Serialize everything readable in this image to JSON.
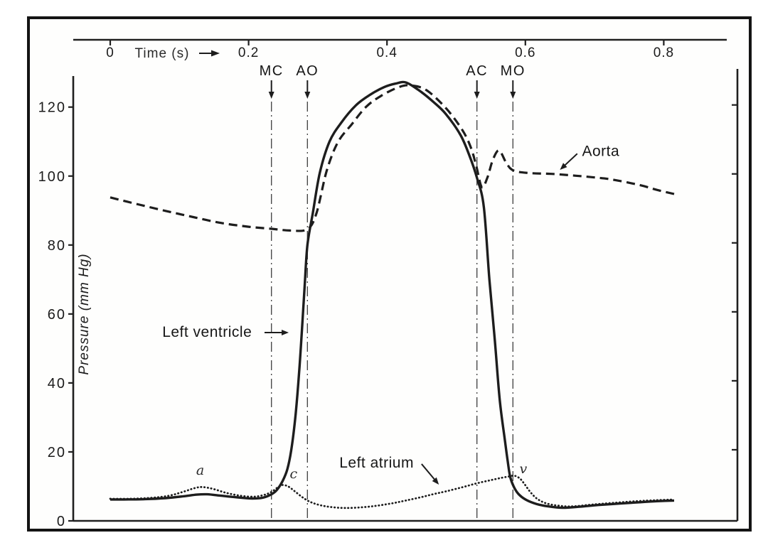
{
  "figure": {
    "colors": {
      "ink": "#1d1d1d",
      "background": "#ffffff",
      "marker_line": "#3d3d3d"
    }
  },
  "chart_data": {
    "type": "line",
    "title": "",
    "xlabel": "Time (s)",
    "ylabel": "Pressure (mm Hg)",
    "xlim": [
      0,
      0.9
    ],
    "ylim": [
      0,
      130
    ],
    "grid": false,
    "legend_position": "none",
    "x_ticks": [
      {
        "label": "0",
        "t": 0.0
      },
      {
        "label": "0.2",
        "t": 0.2
      },
      {
        "label": "0.4",
        "t": 0.4
      },
      {
        "label": "0.6",
        "t": 0.6
      },
      {
        "label": "0.8",
        "t": 0.8
      }
    ],
    "y_ticks": [
      0,
      20,
      40,
      60,
      80,
      100,
      120
    ],
    "series": [
      {
        "name": "Left ventricle",
        "style": "solid",
        "points": [
          [
            0,
            6.2
          ],
          [
            0.02,
            6.2
          ],
          [
            0.05,
            6.3
          ],
          [
            0.08,
            6.6
          ],
          [
            0.105,
            7.1
          ],
          [
            0.125,
            7.6
          ],
          [
            0.14,
            7.7
          ],
          [
            0.16,
            7.3
          ],
          [
            0.185,
            6.8
          ],
          [
            0.205,
            6.5
          ],
          [
            0.22,
            6.7
          ],
          [
            0.233,
            7.7
          ],
          [
            0.241,
            9
          ],
          [
            0.249,
            11.5
          ],
          [
            0.256,
            15
          ],
          [
            0.262,
            21
          ],
          [
            0.268,
            31
          ],
          [
            0.273,
            43
          ],
          [
            0.277,
            55
          ],
          [
            0.281,
            68
          ],
          [
            0.285,
            80
          ],
          [
            0.293,
            89.5
          ],
          [
            0.303,
            101
          ],
          [
            0.317,
            110
          ],
          [
            0.334,
            115.5
          ],
          [
            0.355,
            120.5
          ],
          [
            0.375,
            123.5
          ],
          [
            0.396,
            125.8
          ],
          [
            0.412,
            126.8
          ],
          [
            0.428,
            127.1
          ],
          [
            0.45,
            124.3
          ],
          [
            0.467,
            121.5
          ],
          [
            0.485,
            118
          ],
          [
            0.506,
            112
          ],
          [
            0.519,
            106
          ],
          [
            0.53,
            99.5
          ],
          [
            0.54,
            91
          ],
          [
            0.548,
            70
          ],
          [
            0.556,
            52
          ],
          [
            0.563,
            35
          ],
          [
            0.57,
            24
          ],
          [
            0.574,
            18
          ],
          [
            0.578,
            12.8
          ],
          [
            0.583,
            10
          ],
          [
            0.59,
            7.8
          ],
          [
            0.601,
            6.1
          ],
          [
            0.616,
            4.9
          ],
          [
            0.633,
            4.2
          ],
          [
            0.654,
            3.8
          ],
          [
            0.678,
            4.1
          ],
          [
            0.705,
            4.6
          ],
          [
            0.735,
            5
          ],
          [
            0.765,
            5.4
          ],
          [
            0.79,
            5.7
          ],
          [
            0.815,
            5.9
          ]
        ]
      },
      {
        "name": "Aorta",
        "style": "dashed",
        "points": [
          [
            0,
            93.8
          ],
          [
            0.04,
            91.8
          ],
          [
            0.08,
            89.9
          ],
          [
            0.12,
            88.1
          ],
          [
            0.16,
            86.4
          ],
          [
            0.2,
            85.3
          ],
          [
            0.233,
            84.7
          ],
          [
            0.26,
            84.2
          ],
          [
            0.285,
            84.6
          ],
          [
            0.298,
            89.2
          ],
          [
            0.313,
            101.6
          ],
          [
            0.329,
            109.8
          ],
          [
            0.349,
            115
          ],
          [
            0.37,
            120.1
          ],
          [
            0.391,
            123.2
          ],
          [
            0.416,
            125.7
          ],
          [
            0.433,
            126.3
          ],
          [
            0.457,
            124.9
          ],
          [
            0.486,
            119.5
          ],
          [
            0.509,
            113.3
          ],
          [
            0.521,
            108.4
          ],
          [
            0.529,
            103
          ],
          [
            0.537,
            96.8
          ],
          [
            0.545,
            99.5
          ],
          [
            0.553,
            104.7
          ],
          [
            0.562,
            107.4
          ],
          [
            0.573,
            103.6
          ],
          [
            0.583,
            101.6
          ],
          [
            0.604,
            100.9
          ],
          [
            0.64,
            100.6
          ],
          [
            0.673,
            100.1
          ],
          [
            0.7,
            99.6
          ],
          [
            0.725,
            99
          ],
          [
            0.765,
            97.4
          ],
          [
            0.79,
            96
          ],
          [
            0.815,
            94.8
          ]
        ]
      },
      {
        "name": "Left atrium",
        "style": "dotted",
        "points": [
          [
            0,
            6.4
          ],
          [
            0.03,
            6.4
          ],
          [
            0.06,
            6.7
          ],
          [
            0.085,
            7.3
          ],
          [
            0.105,
            8.4
          ],
          [
            0.122,
            9.5
          ],
          [
            0.133,
            9.8
          ],
          [
            0.148,
            9.3
          ],
          [
            0.168,
            8.1
          ],
          [
            0.188,
            7.3
          ],
          [
            0.207,
            7
          ],
          [
            0.222,
            7.5
          ],
          [
            0.233,
            8.4
          ],
          [
            0.242,
            9.7
          ],
          [
            0.249,
            10.4
          ],
          [
            0.257,
            10
          ],
          [
            0.266,
            8.7
          ],
          [
            0.276,
            7.1
          ],
          [
            0.286,
            5.8
          ],
          [
            0.297,
            4.9
          ],
          [
            0.312,
            4.2
          ],
          [
            0.331,
            3.8
          ],
          [
            0.352,
            3.8
          ],
          [
            0.378,
            4.2
          ],
          [
            0.405,
            5
          ],
          [
            0.427,
            5.9
          ],
          [
            0.45,
            6.9
          ],
          [
            0.468,
            7.8
          ],
          [
            0.486,
            8.6
          ],
          [
            0.508,
            9.7
          ],
          [
            0.53,
            10.9
          ],
          [
            0.55,
            11.8
          ],
          [
            0.566,
            12.5
          ],
          [
            0.577,
            12.9
          ],
          [
            0.584,
            13.1
          ],
          [
            0.592,
            12.3
          ],
          [
            0.599,
            10.6
          ],
          [
            0.607,
            8.4
          ],
          [
            0.617,
            6.4
          ],
          [
            0.63,
            5.1
          ],
          [
            0.648,
            4.4
          ],
          [
            0.668,
            4.2
          ],
          [
            0.695,
            4.7
          ],
          [
            0.725,
            5.2
          ],
          [
            0.76,
            5.7
          ],
          [
            0.79,
            6
          ],
          [
            0.815,
            6.2
          ]
        ]
      }
    ],
    "valve_events": [
      {
        "label": "MC",
        "t": 0.233
      },
      {
        "label": "AO",
        "t": 0.285
      },
      {
        "label": "AC",
        "t": 0.53
      },
      {
        "label": "MO",
        "t": 0.582
      }
    ],
    "annotations": [
      {
        "id": "left-ventricle-label",
        "text": "Left ventricle",
        "t": 0.14,
        "p": 54.8,
        "arrow": {
          "from": [
            0.223,
            54.6
          ],
          "to": [
            0.258,
            54.6
          ]
        }
      },
      {
        "id": "left-atrium-label",
        "text": "Left atrium",
        "t": 0.385,
        "p": 16.9,
        "arrow": {
          "from": [
            0.45,
            16.5
          ],
          "to": [
            0.475,
            10.5
          ]
        }
      },
      {
        "id": "aorta-label",
        "text": "Aorta",
        "t": 0.709,
        "p": 107.3,
        "arrow": {
          "from": [
            0.675,
            106.5
          ],
          "to": [
            0.65,
            101.8
          ]
        }
      },
      {
        "id": "a-wave-label",
        "text": "a",
        "t": 0.13,
        "p": 14.8,
        "italic": true
      },
      {
        "id": "c-wave-label",
        "text": "c",
        "t": 0.265,
        "p": 13.8,
        "italic": true
      },
      {
        "id": "v-wave-label",
        "text": "v",
        "t": 0.597,
        "p": 15.2,
        "italic": true
      }
    ]
  }
}
